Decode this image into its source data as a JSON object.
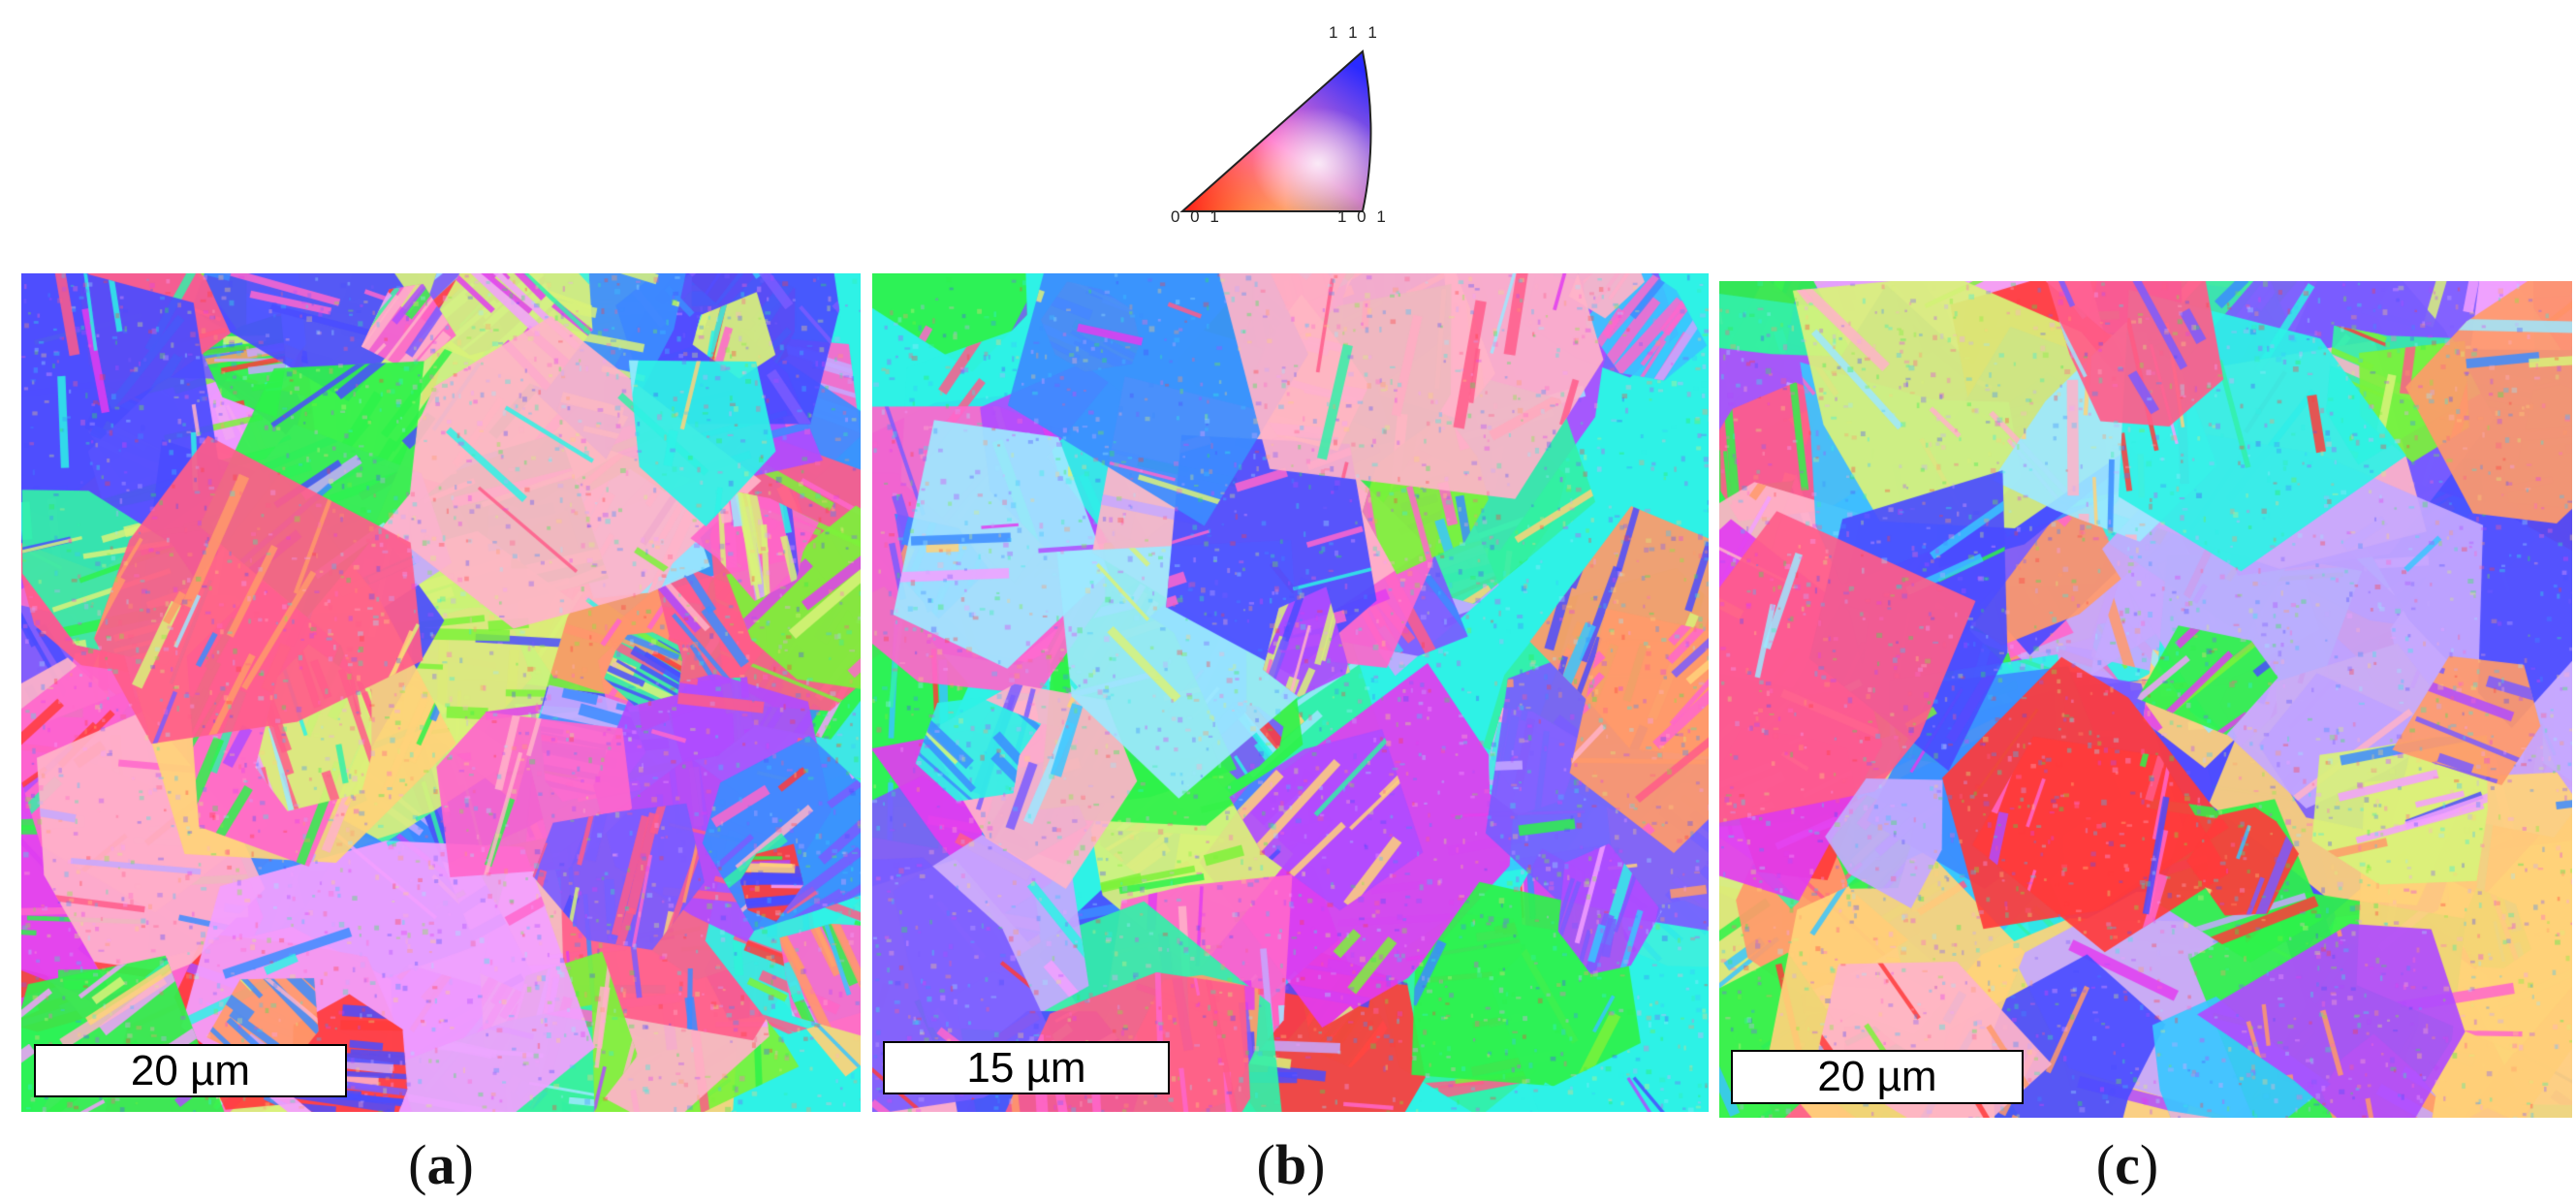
{
  "legend": {
    "labels": {
      "top": "1 1 1",
      "bottom_left": "0 0 1",
      "bottom_right": "1 0 1"
    }
  },
  "panels": [
    {
      "id": "a",
      "scale_bar": "20 µm",
      "caption": "a"
    },
    {
      "id": "b",
      "scale_bar": "15 µm",
      "caption": "b"
    },
    {
      "id": "c",
      "scale_bar": "20 µm",
      "caption": "c"
    }
  ],
  "palette": [
    "#ff3b3b",
    "#ff5c8a",
    "#ff66cc",
    "#e23cf0",
    "#b04bff",
    "#7a5cff",
    "#4a4cff",
    "#3c8cff",
    "#39c6ff",
    "#2ef2e6",
    "#33f0a8",
    "#2ef24a",
    "#7cf23a",
    "#d9f27a",
    "#ffd27a",
    "#ff9a6a",
    "#ffb3c9",
    "#c6a8ff",
    "#9de8ff",
    "#f3a0ff"
  ]
}
